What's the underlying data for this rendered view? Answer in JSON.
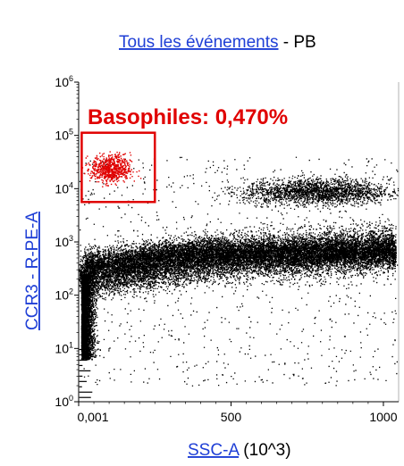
{
  "chart_data": {
    "type": "scatter",
    "title_link": "Tous les événements",
    "title_rest": " - PB",
    "xlabel_link": "SSC-A",
    "xlabel_rest": " (10^3)",
    "ylabel": "CCR3 - R-PE-A",
    "x_scale": "linear",
    "y_scale": "log",
    "xlim": [
      0,
      1050
    ],
    "ylim_log10": [
      0,
      6
    ],
    "x_ticks": [
      {
        "value": 0,
        "label": "0,001"
      },
      {
        "value": 500,
        "label": "500"
      },
      {
        "value": 1000,
        "label": "1000"
      }
    ],
    "y_ticks": [
      {
        "exp": 0,
        "base": "10",
        "sup": "0"
      },
      {
        "exp": 1,
        "base": "10",
        "sup": "1"
      },
      {
        "exp": 2,
        "base": "10",
        "sup": "2"
      },
      {
        "exp": 3,
        "base": "10",
        "sup": "3"
      },
      {
        "exp": 4,
        "base": "10",
        "sup": "4"
      },
      {
        "exp": 5,
        "base": "10",
        "sup": "5"
      },
      {
        "exp": 6,
        "base": "10",
        "sup": "6"
      }
    ],
    "gate": {
      "label": "Basophiles: 0,470%",
      "x_range": [
        10,
        250
      ],
      "y_range_log10": [
        3.75,
        5.05
      ],
      "color": "#e00000"
    },
    "populations_color": "#000000",
    "gated_color": "#e00000",
    "grid": false,
    "legend": "none"
  },
  "colors": {
    "link": "#1f3fd6",
    "gate": "#e00000",
    "events": "#000000"
  }
}
